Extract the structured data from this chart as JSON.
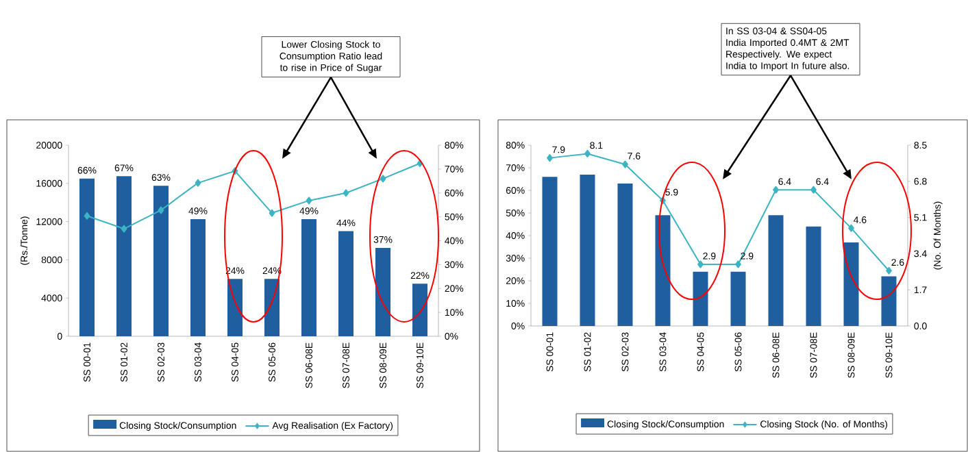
{
  "chart_data": [
    {
      "type": "bar",
      "categories": [
        "SS 00-01",
        "SS 01-02",
        "SS 02-03",
        "SS 03-04",
        "SS 04-05",
        "SS 05-06",
        "SS 06-08E",
        "SS 07-08E",
        "SS 08-09E",
        "SS 09-10E"
      ],
      "ylabel": "(Rs./Tonne)",
      "ylim": [
        0,
        20000
      ],
      "yticks": [
        0,
        4000,
        8000,
        12000,
        16000,
        20000
      ],
      "y2lim": [
        0,
        80
      ],
      "y2ticks": [
        {
          "value": 0,
          "label": "0%"
        },
        {
          "value": 10,
          "label": "10%"
        },
        {
          "value": 20,
          "label": "20%"
        },
        {
          "value": 30,
          "label": "30%"
        },
        {
          "value": 40,
          "label": "40%"
        },
        {
          "value": 50,
          "label": "50%"
        },
        {
          "value": 60,
          "label": "60%"
        },
        {
          "value": 70,
          "label": "70%"
        },
        {
          "value": 80,
          "label": "80%"
        }
      ],
      "legend": "bottom",
      "marker": "diamond",
      "annotations": [
        "Lower Closing Stock to Consumption Ratio lead to rise in Price of Sugar"
      ],
      "series": [
        {
          "name": "Closing Stock/Consumption",
          "type": "bar",
          "axis": "y2",
          "color": "#1f5f9f",
          "values": [
            66,
            67,
            63,
            49,
            24,
            24,
            49,
            44,
            37,
            22
          ],
          "value_labels": [
            "66%",
            "67%",
            "63%",
            "49%",
            "24%",
            "24%",
            "49%",
            "44%",
            "37%",
            "22%"
          ]
        },
        {
          "name": "Avg Realisation (Ex Factory)",
          "type": "line",
          "color": "#3cb4c4",
          "values": [
            12600,
            11250,
            13200,
            16050,
            17300,
            12900,
            14200,
            15000,
            16500,
            18100
          ]
        }
      ]
    },
    {
      "type": "bar",
      "categories": [
        "SS 00-01",
        "SS 01-02",
        "SS 02-03",
        "SS 03-04",
        "SS 04-05",
        "SS 05-06",
        "SS 06-08E",
        "SS 07-08E",
        "SS 08-09E",
        "SS 09-10E"
      ],
      "ylim": [
        0,
        80
      ],
      "yticks": [
        {
          "value": 0,
          "label": "0%"
        },
        {
          "value": 10,
          "label": "10%"
        },
        {
          "value": 20,
          "label": "20%"
        },
        {
          "value": 30,
          "label": "30%"
        },
        {
          "value": 40,
          "label": "40%"
        },
        {
          "value": 50,
          "label": "50%"
        },
        {
          "value": 60,
          "label": "60%"
        },
        {
          "value": 70,
          "label": "70%"
        },
        {
          "value": 80,
          "label": "80%"
        }
      ],
      "y2label": "(No. Of Months)",
      "y2lim": [
        0,
        8.5
      ],
      "y2ticks": [
        {
          "value": 0,
          "label": "0.0"
        },
        1.7,
        3.4,
        5.1,
        6.8,
        8.5
      ],
      "legend": "bottom",
      "marker": "diamond",
      "annotations": [
        "In SS 03-04 & SS04-05 India Imported 0.4MT & 2MT Respectively. We expect India to Import In future also."
      ],
      "series": [
        {
          "name": "Closing Stock/Consumption",
          "type": "bar",
          "color": "#1f5f9f",
          "values": [
            66,
            67,
            63,
            49,
            24,
            24,
            49,
            44,
            37,
            22
          ]
        },
        {
          "name": "Closing Stock (No. of Months)",
          "type": "line",
          "axis": "y2",
          "color": "#3cb4c4",
          "values": [
            7.9,
            8.1,
            7.6,
            5.9,
            2.9,
            2.9,
            6.4,
            6.4,
            4.6,
            2.6
          ],
          "value_labels": [
            "7.9",
            "8.1",
            "7.6",
            "5.9",
            "2.9",
            "2.9",
            "6.4",
            "6.4",
            "4.6",
            "2.6"
          ]
        }
      ]
    }
  ]
}
